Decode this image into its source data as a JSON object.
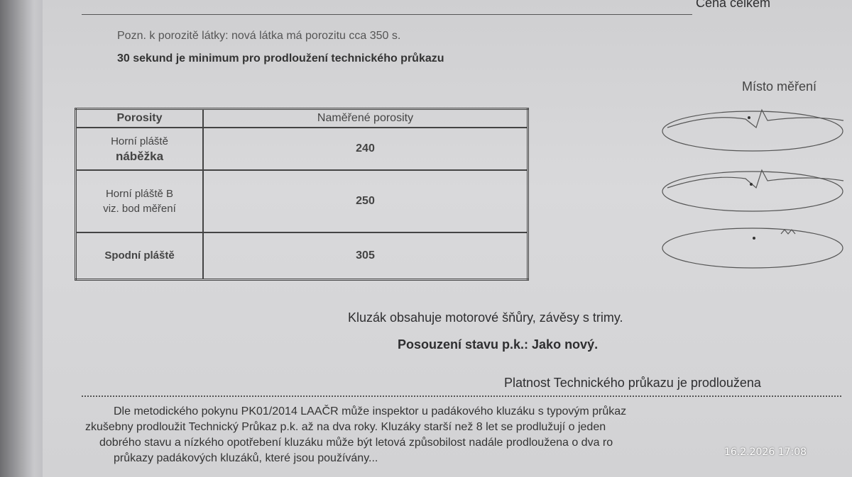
{
  "header": {
    "top_right": "Cena celkem"
  },
  "note": "Pozn. k porozitě látky:  nová látka má porozitu cca 350 s.",
  "minimum": "30 sekund je minimum pro prodloužení technického průkazu",
  "diagram": {
    "title": "Místo měření"
  },
  "table": {
    "headers": [
      "Porosity",
      "Naměřené porosity"
    ],
    "rows": [
      {
        "label_line1": "Horní pláště",
        "label_line2": "náběžka",
        "value": "240"
      },
      {
        "label_line1": "Horní pláště B",
        "label_line2": "viz. bod měření",
        "value": "250"
      },
      {
        "label_line1": "Spodní pláště",
        "label_line2": "",
        "value": "305"
      }
    ]
  },
  "kluzak_text": "Kluzák obsahuje motorové šňůry, závěsy s trimy.",
  "posouzeni": "Posouzení stavu p.k.: Jako nový.",
  "platnost": "Platnost Technického průkazu je prodloužena",
  "paragraph": [
    "Dle metodického pokynu PK01/2014 LAAČR může inspektor u padákového kluzáku s typovým průkaz",
    "zkušebny prodloužit Technický Průkaz p.k. až na dva roky. Kluzáky starší než 8 let se prodlužují o jeden",
    "dobrého stavu a nízkého opotřebení kluzáku může být letová způsobilost nadále prodloužena o dva ro",
    "průkazy padákových kluzáků, které jsou používány..."
  ],
  "timestamp": "16.2.2026  17:08"
}
